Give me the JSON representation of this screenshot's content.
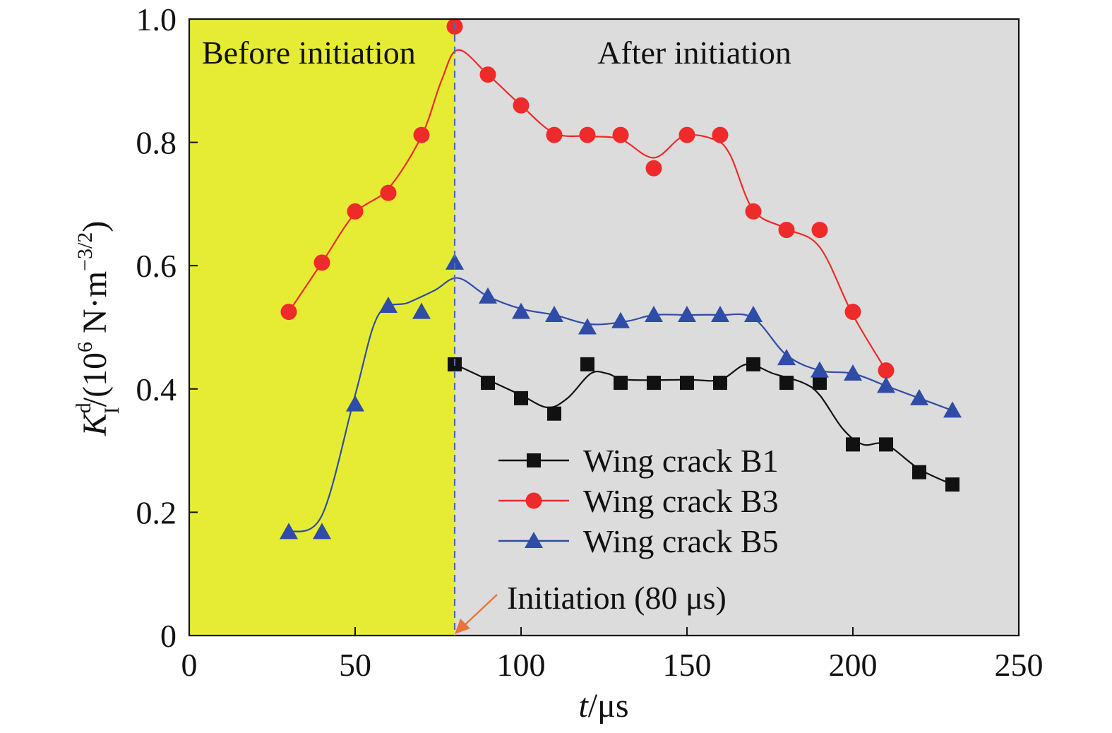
{
  "chart_data": {
    "type": "line",
    "title": "",
    "xlabel": {
      "var": "t",
      "unit": "/μs"
    },
    "ylabel": {
      "var": "K",
      "sup": "d",
      "sub": "I",
      "unit_open": "/(10",
      "unit_exp": "6",
      "unit_mid": " N·m",
      "unit_exp2": "−3/2",
      "unit_close": ")"
    },
    "xlim": [
      0,
      250
    ],
    "ylim": [
      0,
      1.0
    ],
    "xticks": [
      0,
      50,
      100,
      150,
      200,
      250
    ],
    "yticks": [
      0,
      0.2,
      0.4,
      0.6,
      0.8,
      1.0
    ],
    "xtick_labels": [
      "0",
      "50",
      "100",
      "150",
      "200",
      "250"
    ],
    "ytick_labels": [
      "0",
      "0.2",
      "0.4",
      "0.6",
      "0.8",
      "1.0"
    ],
    "grid": false,
    "legend_position": "lower-center-right",
    "regions": [
      {
        "label": "Before initiation",
        "x_from": 0,
        "x_to": 80,
        "color": "#e6ec34"
      },
      {
        "label": "After initiation",
        "x_from": 80,
        "x_to": 250,
        "color": "#dcdcdc"
      }
    ],
    "initiation": {
      "x": 80,
      "label": "Initiation (80 μs)",
      "line_color": "#4a6fa8",
      "arrow_color": "#e8743b"
    },
    "series": [
      {
        "name": "Wing crack B1",
        "marker": "square",
        "color": "#111111",
        "x": [
          80,
          90,
          100,
          110,
          120,
          130,
          140,
          150,
          160,
          170,
          180,
          190,
          200,
          210,
          220,
          230
        ],
        "y": [
          0.44,
          0.41,
          0.385,
          0.36,
          0.44,
          0.41,
          0.41,
          0.41,
          0.41,
          0.44,
          0.41,
          0.41,
          0.31,
          0.31,
          0.265,
          0.245
        ]
      },
      {
        "name": "Wing crack B3",
        "marker": "circle",
        "color": "#ee2a2a",
        "x": [
          30,
          40,
          50,
          60,
          70,
          80,
          90,
          100,
          110,
          120,
          130,
          140,
          150,
          160,
          170,
          180,
          190,
          200,
          210
        ],
        "y": [
          0.525,
          0.605,
          0.688,
          0.718,
          0.812,
          0.988,
          0.91,
          0.86,
          0.812,
          0.812,
          0.812,
          0.758,
          0.812,
          0.812,
          0.688,
          0.658,
          0.658,
          0.525,
          0.43
        ]
      },
      {
        "name": "Wing crack B5",
        "marker": "triangle",
        "color": "#2f4ca6",
        "x": [
          30,
          40,
          50,
          60,
          70,
          80,
          90,
          100,
          110,
          120,
          130,
          140,
          150,
          160,
          170,
          180,
          190,
          200,
          210,
          220,
          230
        ],
        "y": [
          0.168,
          0.168,
          0.375,
          0.535,
          0.525,
          0.605,
          0.55,
          0.525,
          0.52,
          0.5,
          0.51,
          0.52,
          0.52,
          0.52,
          0.52,
          0.45,
          0.43,
          0.425,
          0.405,
          0.385,
          0.365
        ]
      }
    ],
    "smooth_curves": {
      "Wing crack B1": [
        [
          80,
          0.44
        ],
        [
          90,
          0.415
        ],
        [
          100,
          0.39
        ],
        [
          108,
          0.37
        ],
        [
          114,
          0.385
        ],
        [
          121,
          0.425
        ],
        [
          126,
          0.425
        ],
        [
          132,
          0.415
        ],
        [
          150,
          0.415
        ],
        [
          160,
          0.415
        ],
        [
          168,
          0.44
        ],
        [
          176,
          0.425
        ],
        [
          185,
          0.41
        ],
        [
          190,
          0.39
        ],
        [
          197,
          0.335
        ],
        [
          203,
          0.31
        ],
        [
          210,
          0.31
        ],
        [
          220,
          0.27
        ],
        [
          230,
          0.245
        ]
      ],
      "Wing crack B3": [
        [
          30,
          0.525
        ],
        [
          40,
          0.605
        ],
        [
          50,
          0.685
        ],
        [
          60,
          0.725
        ],
        [
          70,
          0.81
        ],
        [
          76,
          0.9
        ],
        [
          81,
          0.95
        ],
        [
          90,
          0.91
        ],
        [
          100,
          0.86
        ],
        [
          110,
          0.815
        ],
        [
          120,
          0.81
        ],
        [
          130,
          0.805
        ],
        [
          140,
          0.775
        ],
        [
          149,
          0.81
        ],
        [
          158,
          0.805
        ],
        [
          163,
          0.78
        ],
        [
          170,
          0.69
        ],
        [
          180,
          0.66
        ],
        [
          190,
          0.63
        ],
        [
          200,
          0.52
        ],
        [
          210,
          0.43
        ]
      ],
      "Wing crack B5": [
        [
          30,
          0.168
        ],
        [
          40,
          0.195
        ],
        [
          50,
          0.39
        ],
        [
          57,
          0.52
        ],
        [
          66,
          0.54
        ],
        [
          74,
          0.56
        ],
        [
          81,
          0.58
        ],
        [
          90,
          0.55
        ],
        [
          100,
          0.53
        ],
        [
          110,
          0.52
        ],
        [
          121,
          0.505
        ],
        [
          132,
          0.51
        ],
        [
          140,
          0.52
        ],
        [
          150,
          0.52
        ],
        [
          160,
          0.52
        ],
        [
          170,
          0.515
        ],
        [
          180,
          0.455
        ],
        [
          190,
          0.43
        ],
        [
          200,
          0.425
        ],
        [
          210,
          0.405
        ],
        [
          220,
          0.385
        ],
        [
          230,
          0.365
        ]
      ]
    }
  }
}
